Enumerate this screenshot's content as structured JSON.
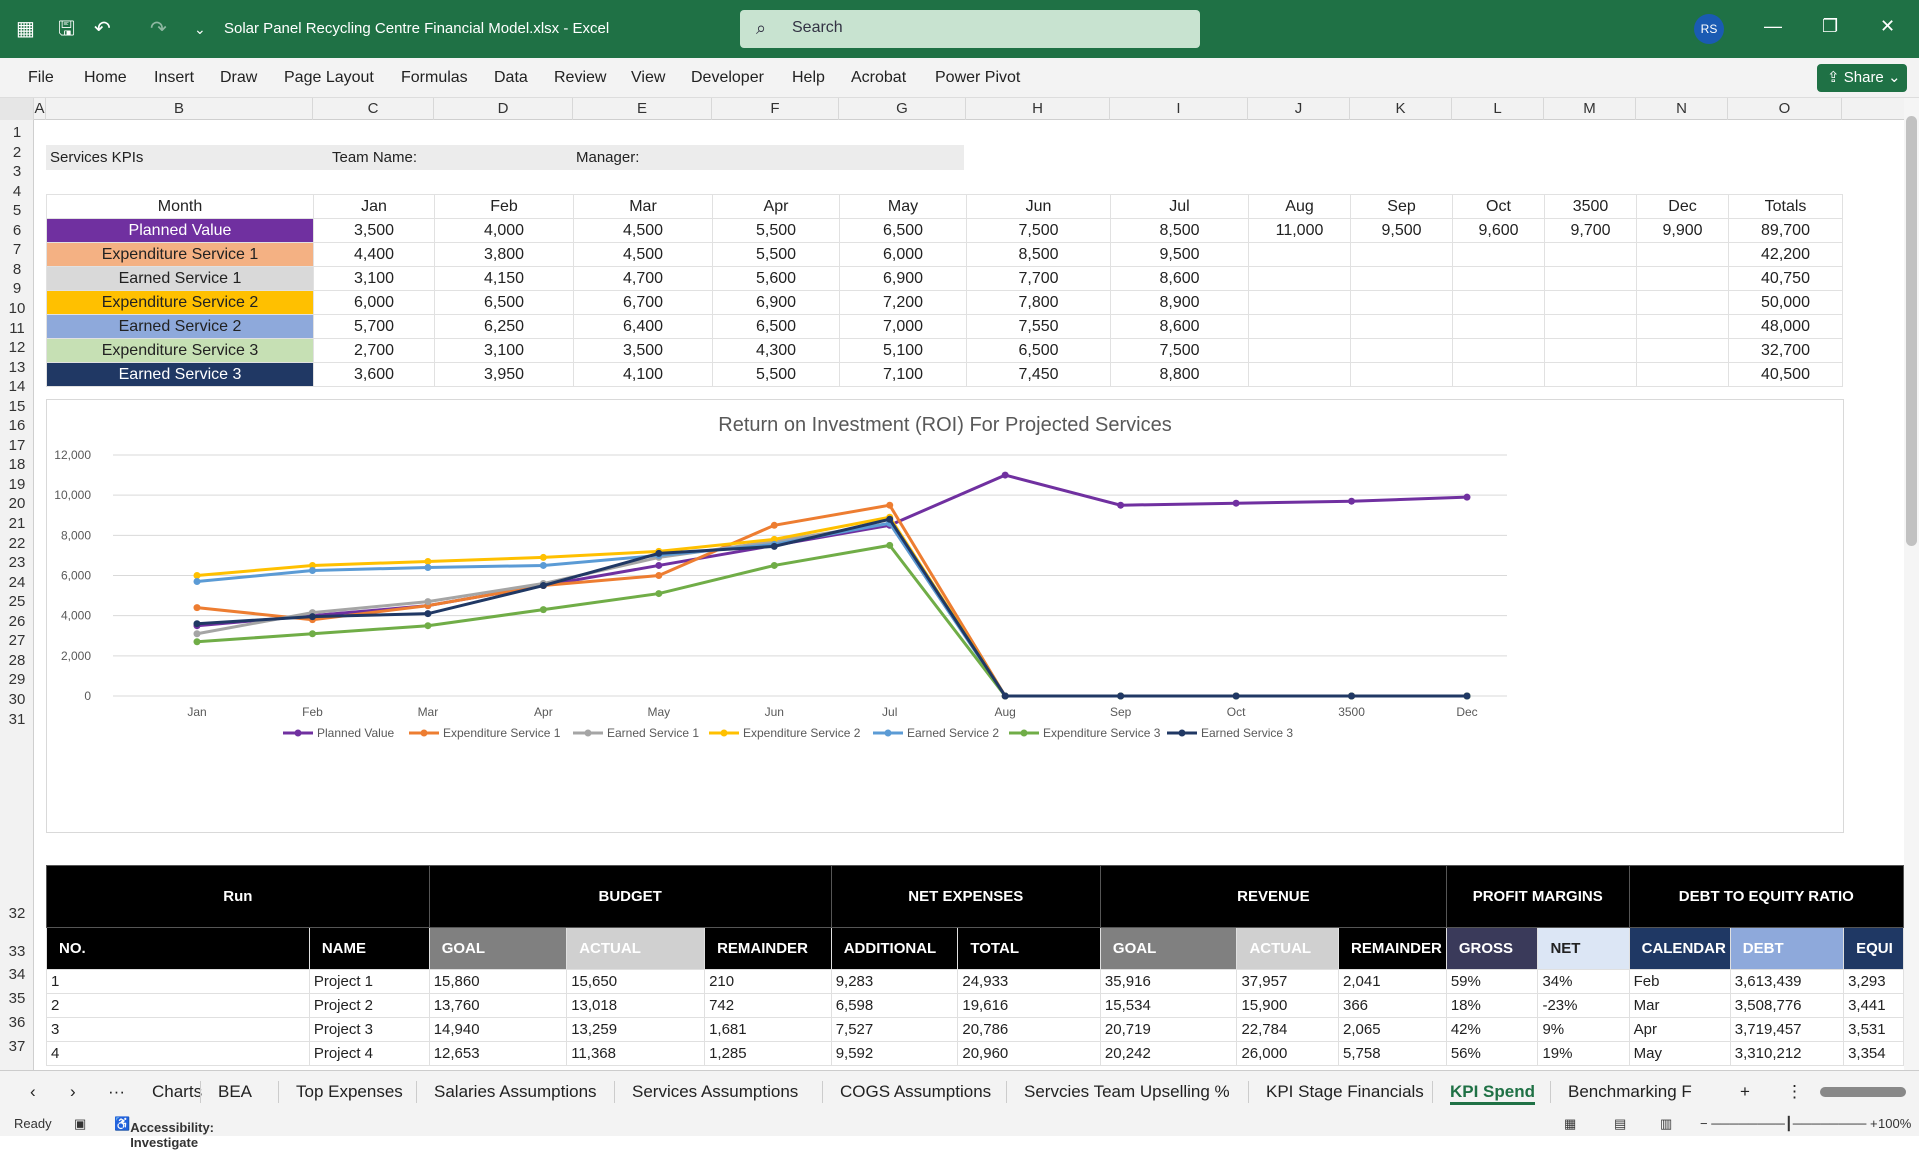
{
  "window": {
    "filename": "Solar Panel Recycling Centre Financial Model.xlsx",
    "app": "Excel",
    "search_placeholder": "Search",
    "user_initials": "RS",
    "share_label": "Share"
  },
  "menu": [
    "File",
    "Home",
    "Insert",
    "Draw",
    "Page Layout",
    "Formulas",
    "Data",
    "Review",
    "View",
    "Developer",
    "Help",
    "Acrobat",
    "Power Pivot"
  ],
  "columns": [
    "A",
    "B",
    "C",
    "D",
    "E",
    "F",
    "G",
    "H",
    "I",
    "J",
    "K",
    "L",
    "M",
    "N",
    "O"
  ],
  "rows": [
    "1",
    "2",
    "3",
    "4",
    "5",
    "6",
    "7",
    "8",
    "9",
    "10",
    "11",
    "12",
    "13",
    "14",
    "15",
    "16",
    "17",
    "18",
    "19",
    "20",
    "21",
    "22",
    "23",
    "24",
    "25",
    "26",
    "27",
    "28",
    "29",
    "30",
    "31",
    "32",
    "33",
    "34",
    "35",
    "36",
    "37"
  ],
  "header_row": {
    "services_kpis": "Services KPIs",
    "team_name": "Team Name:",
    "manager": "Manager:"
  },
  "kpi_table": {
    "month_header": "Month",
    "months": [
      "Jan",
      "Feb",
      "Mar",
      "Apr",
      "May",
      "Jun",
      "Jul",
      "Aug",
      "Sep",
      "Oct",
      "3500",
      "Dec",
      "Totals"
    ],
    "rows": [
      {
        "label": "Planned Value",
        "color": "#7030a0",
        "text": "#ffffff",
        "values": [
          "3,500",
          "4,000",
          "4,500",
          "5,500",
          "6,500",
          "7,500",
          "8,500",
          "11,000",
          "9,500",
          "9,600",
          "9,700",
          "9,900",
          "89,700"
        ]
      },
      {
        "label": "Expenditure Service 1",
        "color": "#f4b183",
        "text": "#222222",
        "values": [
          "4,400",
          "3,800",
          "4,500",
          "5,500",
          "6,000",
          "8,500",
          "9,500",
          "",
          "",
          "",
          "",
          "",
          "42,200"
        ]
      },
      {
        "label": "Earned Service 1",
        "color": "#d9d9d9",
        "text": "#222222",
        "values": [
          "3,100",
          "4,150",
          "4,700",
          "5,600",
          "6,900",
          "7,700",
          "8,600",
          "",
          "",
          "",
          "",
          "",
          "40,750"
        ]
      },
      {
        "label": "Expenditure Service 2",
        "color": "#ffc000",
        "text": "#222222",
        "values": [
          "6,000",
          "6,500",
          "6,700",
          "6,900",
          "7,200",
          "7,800",
          "8,900",
          "",
          "",
          "",
          "",
          "",
          "50,000"
        ]
      },
      {
        "label": "Earned Service 2",
        "color": "#8ea9db",
        "text": "#222222",
        "values": [
          "5,700",
          "6,250",
          "6,400",
          "6,500",
          "7,000",
          "7,550",
          "8,600",
          "",
          "",
          "",
          "",
          "",
          "48,000"
        ]
      },
      {
        "label": "Expenditure Service 3",
        "color": "#c6e0b4",
        "text": "#222222",
        "values": [
          "2,700",
          "3,100",
          "3,500",
          "4,300",
          "5,100",
          "6,500",
          "7,500",
          "",
          "",
          "",
          "",
          "",
          "32,700"
        ]
      },
      {
        "label": "Earned Service 3",
        "color": "#203864",
        "text": "#ffffff",
        "values": [
          "3,600",
          "3,950",
          "4,100",
          "5,500",
          "7,100",
          "7,450",
          "8,800",
          "",
          "",
          "",
          "",
          "",
          "40,500"
        ]
      }
    ]
  },
  "chart_data": {
    "type": "line",
    "title": "Return on Investment (ROI) For Projected Services",
    "categories": [
      "Jan",
      "Feb",
      "Mar",
      "Apr",
      "May",
      "Jun",
      "Jul",
      "Aug",
      "Sep",
      "Oct",
      "3500",
      "Dec"
    ],
    "y_ticks": [
      "0",
      "2,000",
      "4,000",
      "6,000",
      "8,000",
      "10,000",
      "12,000"
    ],
    "ylim": [
      0,
      12000
    ],
    "grid": true,
    "legend_position": "bottom",
    "series": [
      {
        "name": "Planned Value",
        "color": "#7030a0",
        "values": [
          3500,
          4000,
          4500,
          5500,
          6500,
          7500,
          8500,
          11000,
          9500,
          9600,
          9700,
          9900
        ]
      },
      {
        "name": "Expenditure Service 1",
        "color": "#ed7d31",
        "values": [
          4400,
          3800,
          4500,
          5500,
          6000,
          8500,
          9500,
          0,
          0,
          0,
          0,
          0
        ]
      },
      {
        "name": "Earned Service 1",
        "color": "#a5a5a5",
        "values": [
          3100,
          4150,
          4700,
          5600,
          6900,
          7700,
          8600,
          0,
          0,
          0,
          0,
          0
        ]
      },
      {
        "name": "Expenditure Service 2",
        "color": "#ffc000",
        "values": [
          6000,
          6500,
          6700,
          6900,
          7200,
          7800,
          8900,
          0,
          0,
          0,
          0,
          0
        ]
      },
      {
        "name": "Earned Service 2",
        "color": "#5b9bd5",
        "values": [
          5700,
          6250,
          6400,
          6500,
          7000,
          7550,
          8600,
          0,
          0,
          0,
          0,
          0
        ]
      },
      {
        "name": "Expenditure Service 3",
        "color": "#70ad47",
        "values": [
          2700,
          3100,
          3500,
          4300,
          5100,
          6500,
          7500,
          0,
          0,
          0,
          0,
          0
        ]
      },
      {
        "name": "Earned Service 3",
        "color": "#203864",
        "values": [
          3600,
          3950,
          4100,
          5500,
          7100,
          7450,
          8800,
          0,
          0,
          0,
          0,
          0
        ]
      }
    ]
  },
  "budget_table": {
    "groups": [
      "Run",
      "BUDGET",
      "NET EXPENSES",
      "REVENUE",
      "PROFIT MARGINS",
      "DEBT TO EQUITY RATIO"
    ],
    "subheaders": [
      "NO.",
      "NAME",
      "GOAL",
      "ACTUAL",
      "REMAINDER",
      "ADDITIONAL",
      "TOTAL",
      "GOAL",
      "ACTUAL",
      "REMAINDER",
      "GROSS",
      "NET",
      "CALENDAR",
      "DEBT",
      "EQUI"
    ],
    "rows": [
      [
        "1",
        "Project 1",
        "15,860",
        "15,650",
        "210",
        "9,283",
        "24,933",
        "35,916",
        "37,957",
        "2,041",
        "59%",
        "34%",
        "Feb",
        "3,613,439",
        "3,293"
      ],
      [
        "2",
        "Project 2",
        "13,760",
        "13,018",
        "742",
        "6,598",
        "19,616",
        "15,534",
        "15,900",
        "366",
        "18%",
        "-23%",
        "Mar",
        "3,508,776",
        "3,441"
      ],
      [
        "3",
        "Project 3",
        "14,940",
        "13,259",
        "1,681",
        "7,527",
        "20,786",
        "20,719",
        "22,784",
        "2,065",
        "42%",
        "9%",
        "Apr",
        "3,719,457",
        "3,531"
      ],
      [
        "4",
        "Project 4",
        "12,653",
        "11,368",
        "1,285",
        "9,592",
        "20,960",
        "20,242",
        "26,000",
        "5,758",
        "56%",
        "19%",
        "May",
        "3,310,212",
        "3,354"
      ]
    ]
  },
  "tabs": [
    "Charts",
    "BEA",
    "Top Expenses",
    "Salaries Assumptions",
    "Services Assumptions",
    "COGS Assumptions",
    "Servcies Team Upselling %",
    "KPI Stage Financials",
    "KPI Spend",
    "Benchmarking F"
  ],
  "active_tab": "KPI Spend",
  "status": {
    "ready": "Ready",
    "accessibility": "Accessibility: Investigate",
    "zoom": "100%"
  }
}
